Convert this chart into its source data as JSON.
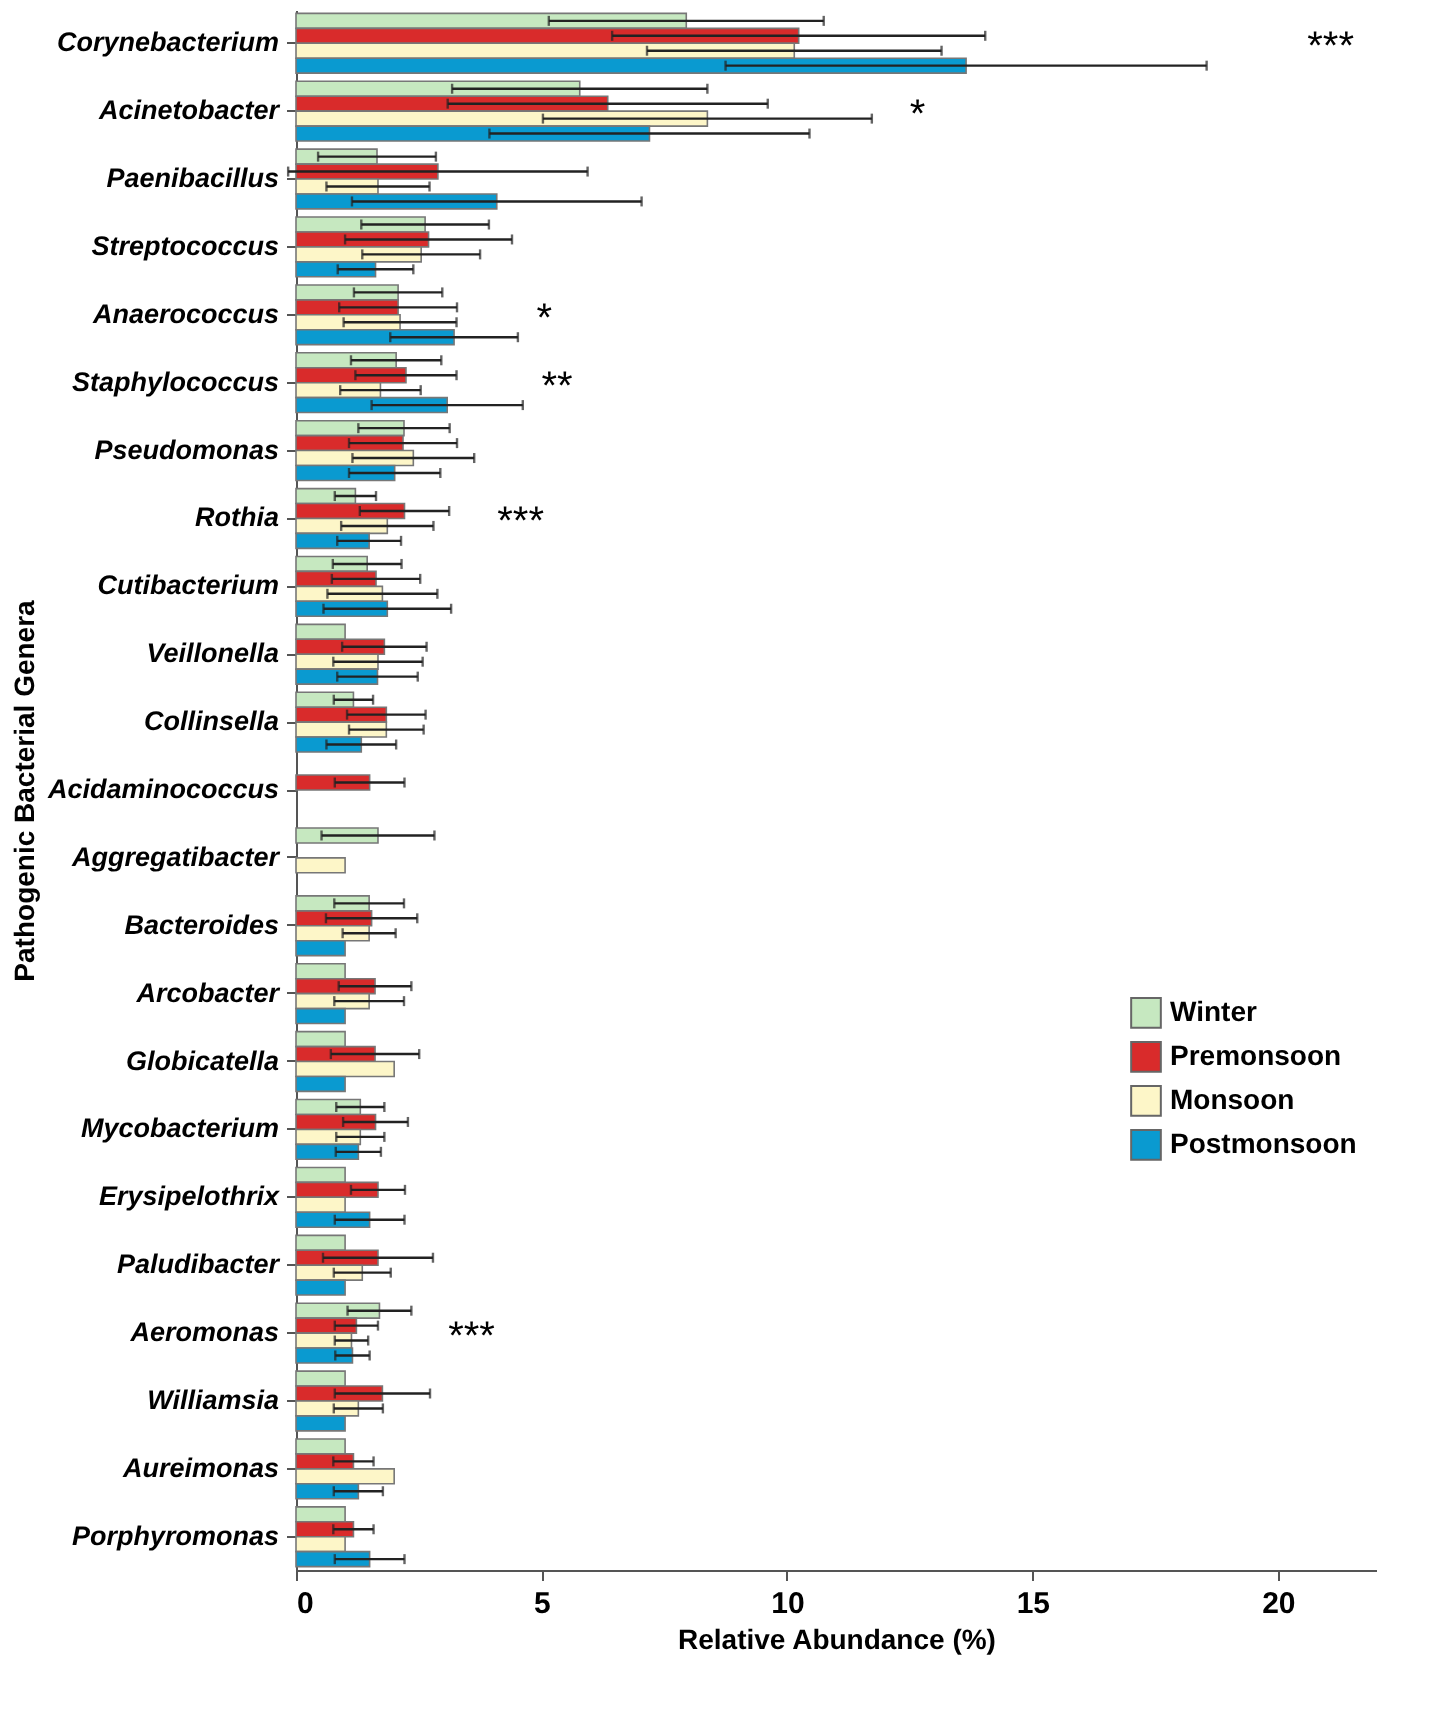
{
  "chart_data": {
    "type": "bar",
    "orientation": "horizontal",
    "xlabel": "Relative Abundance (%)",
    "ylabel": "Pathogenic Bacterial Genera",
    "categories": [
      "Corynebacterium",
      "Acinetobacter",
      "Paenibacillus",
      "Streptococcus",
      "Anaerococcus",
      "Staphylococcus",
      "Pseudomonas",
      "Rothia",
      "Cutibacterium",
      "Veillonella",
      "Collinsella",
      "Acidaminococcus",
      "Aggregatibacter",
      "Bacteroides",
      "Arcobacter",
      "Globicatella",
      "Mycobacterium",
      "Erysipelothrix",
      "Paludibacter",
      "Aeromonas",
      "Williamsia",
      "Aureimonas",
      "Porphyromonas"
    ],
    "series": [
      {
        "name": "Winter",
        "color": "#c6e8c0",
        "values": [
          7.95,
          5.78,
          1.65,
          2.63,
          2.08,
          2.04,
          2.2,
          1.21,
          1.45,
          1.0,
          1.17,
          null,
          1.67,
          1.49,
          1.0,
          1.0,
          1.31,
          1.0,
          1.0,
          1.7,
          1.0,
          1.0,
          1.0
        ],
        "errors": [
          2.8,
          2.6,
          1.2,
          1.3,
          0.9,
          0.92,
          0.93,
          0.42,
          0.7,
          null,
          0.4,
          null,
          1.15,
          0.71,
          null,
          null,
          0.49,
          null,
          null,
          0.65,
          null,
          null,
          null
        ]
      },
      {
        "name": "Premonsoon",
        "color": "#d92b2b",
        "values": [
          10.24,
          6.35,
          2.89,
          2.7,
          2.08,
          2.24,
          2.18,
          2.21,
          1.63,
          1.8,
          1.84,
          1.5,
          null,
          1.54,
          1.61,
          1.61,
          1.62,
          1.67,
          1.67,
          1.23,
          1.76,
          1.17,
          1.17
        ],
        "errors": [
          3.8,
          3.26,
          3.05,
          1.7,
          1.2,
          1.03,
          1.1,
          0.91,
          0.9,
          0.86,
          0.8,
          0.71,
          null,
          0.93,
          0.74,
          0.9,
          0.66,
          0.55,
          1.12,
          0.44,
          0.97,
          0.41,
          0.41
        ]
      },
      {
        "name": "Monsoon",
        "color": "#fdf6c8",
        "values": [
          10.15,
          8.38,
          1.67,
          2.55,
          2.12,
          1.72,
          2.39,
          1.86,
          1.76,
          1.67,
          1.84,
          null,
          1.0,
          1.49,
          1.49,
          2.0,
          1.31,
          1.0,
          1.35,
          1.13,
          1.27,
          2.0,
          1.0
        ],
        "errors": [
          3.0,
          3.35,
          1.05,
          1.2,
          1.15,
          0.82,
          1.24,
          0.94,
          1.12,
          0.91,
          0.76,
          null,
          null,
          0.54,
          0.71,
          null,
          0.49,
          null,
          0.58,
          0.34,
          0.5,
          null,
          null
        ]
      },
      {
        "name": "Postmonsoon",
        "color": "#0a9ad0",
        "values": [
          13.65,
          7.2,
          4.09,
          1.62,
          3.22,
          3.08,
          2.01,
          1.49,
          1.86,
          1.66,
          1.33,
          null,
          null,
          1.0,
          1.0,
          1.0,
          1.27,
          1.5,
          1.0,
          1.15,
          1.0,
          1.27,
          1.5
        ],
        "errors": [
          4.9,
          3.26,
          2.95,
          0.77,
          1.3,
          1.54,
          0.93,
          0.65,
          1.3,
          0.82,
          0.71,
          null,
          null,
          null,
          null,
          null,
          0.46,
          0.71,
          null,
          0.35,
          null,
          0.5,
          0.71
        ]
      }
    ],
    "xlim": [
      0,
      22
    ],
    "xticks": [
      0,
      5,
      10,
      15,
      20
    ],
    "grid": false,
    "legend": "right",
    "annotations": [
      "***",
      "*",
      "*",
      "**",
      "***",
      "***"
    ]
  }
}
